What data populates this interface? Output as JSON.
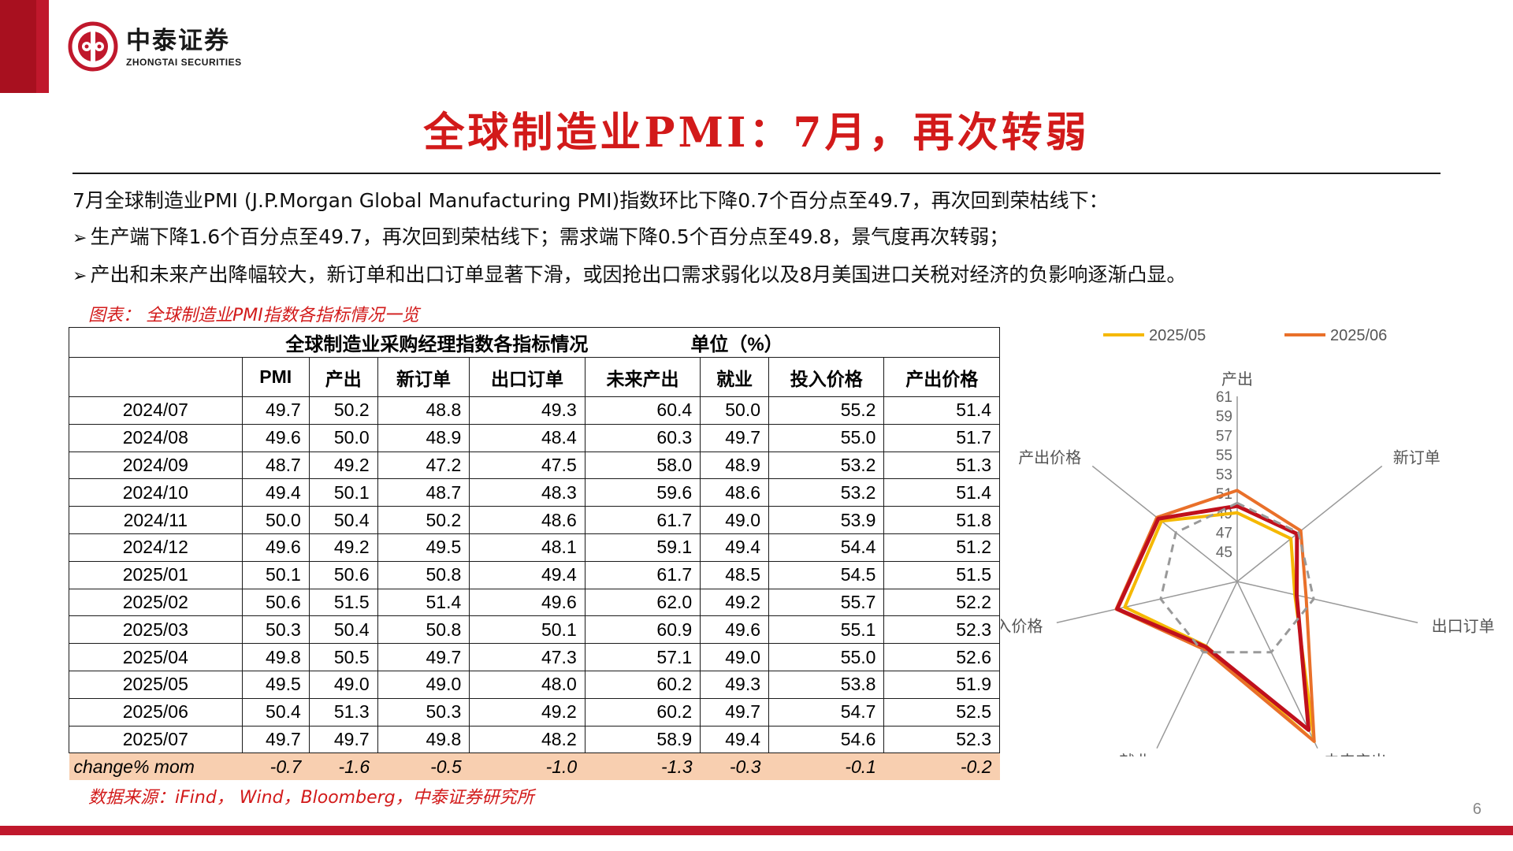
{
  "logo": {
    "cn": "中泰证券",
    "en": "ZHONGTAI SECURITIES"
  },
  "title": "全球制造业PMI：7月，再次转弱",
  "bullets": {
    "intro": "7月全球制造业PMI (J.P.Morgan Global Manufacturing PMI)指数环比下降0.7个百分点至49.7，再次回到荣枯线下：",
    "b1": "生产端下降1.6个百分点至49.7，再次回到荣枯线下；需求端下降0.5个百分点至49.8，景气度再次转弱；",
    "b2": "产出和未来产出降幅较大，新订单和出口订单显著下滑，或因抢出口需求弱化以及8月美国进口关税对经济的负影响逐渐凸显。"
  },
  "figure_caption": "图表：  全球制造业PMI指数各指标情况一览",
  "table": {
    "title": "全球制造业采购经理指数各指标情况",
    "unit": "单位（%）",
    "columns": [
      "PMI",
      "产出",
      "新订单",
      "出口订单",
      "未来产出",
      "就业",
      "投入价格",
      "产出价格"
    ],
    "rows": [
      {
        "date": "2024/07",
        "v": [
          "49.7",
          "50.2",
          "48.8",
          "49.3",
          "60.4",
          "50.0",
          "55.2",
          "51.4"
        ]
      },
      {
        "date": "2024/08",
        "v": [
          "49.6",
          "50.0",
          "48.9",
          "48.4",
          "60.3",
          "49.7",
          "55.0",
          "51.7"
        ]
      },
      {
        "date": "2024/09",
        "v": [
          "48.7",
          "49.2",
          "47.2",
          "47.5",
          "58.0",
          "48.9",
          "53.2",
          "51.3"
        ]
      },
      {
        "date": "2024/10",
        "v": [
          "49.4",
          "50.1",
          "48.7",
          "48.3",
          "59.6",
          "48.6",
          "53.2",
          "51.4"
        ]
      },
      {
        "date": "2024/11",
        "v": [
          "50.0",
          "50.4",
          "50.2",
          "48.6",
          "61.7",
          "49.0",
          "53.9",
          "51.8"
        ]
      },
      {
        "date": "2024/12",
        "v": [
          "49.6",
          "49.2",
          "49.5",
          "48.1",
          "59.1",
          "49.4",
          "54.4",
          "51.2"
        ]
      },
      {
        "date": "2025/01",
        "v": [
          "50.1",
          "50.6",
          "50.8",
          "49.4",
          "61.7",
          "48.5",
          "54.5",
          "51.5"
        ]
      },
      {
        "date": "2025/02",
        "v": [
          "50.6",
          "51.5",
          "51.4",
          "49.6",
          "62.0",
          "49.2",
          "55.7",
          "52.2"
        ]
      },
      {
        "date": "2025/03",
        "v": [
          "50.3",
          "50.4",
          "50.8",
          "50.1",
          "60.9",
          "49.6",
          "55.1",
          "52.3"
        ]
      },
      {
        "date": "2025/04",
        "v": [
          "49.8",
          "50.5",
          "49.7",
          "47.3",
          "57.1",
          "49.0",
          "55.0",
          "52.6"
        ]
      },
      {
        "date": "2025/05",
        "v": [
          "49.5",
          "49.0",
          "49.0",
          "48.0",
          "60.2",
          "49.3",
          "53.8",
          "51.9"
        ]
      },
      {
        "date": "2025/06",
        "v": [
          "50.4",
          "51.3",
          "50.3",
          "49.2",
          "60.2",
          "49.7",
          "54.7",
          "52.5"
        ]
      },
      {
        "date": "2025/07",
        "v": [
          "49.7",
          "49.7",
          "49.8",
          "48.2",
          "58.9",
          "49.4",
          "54.6",
          "52.3"
        ]
      }
    ],
    "change": {
      "label": "change% mom",
      "v": [
        "-0.7",
        "-1.6",
        "-0.5",
        "-1.0",
        "-1.3",
        "-0.3",
        "-0.1",
        "-0.2"
      ]
    }
  },
  "source": "数据来源：iFind， Wind，Bloomberg，中泰证券研究所",
  "page_number": "6",
  "colors": {
    "brand_red": "#c0182c",
    "title_red": "#d21a1a",
    "change_row": "#f8cfb0"
  },
  "chart_data": {
    "type": "radar",
    "axes": [
      "产出",
      "新订单",
      "出口订单",
      "未来产出",
      "就业",
      "投入价格",
      "产出价格"
    ],
    "ticks": [
      "45",
      "47",
      "49",
      "51",
      "53",
      "55",
      "57",
      "59",
      "61"
    ],
    "rmin": 45,
    "rmax": 61,
    "legend_position": "top",
    "series": [
      {
        "name": "2025/05",
        "color": "#f5b800",
        "dash": false,
        "values": [
          49.0,
          49.0,
          48.0,
          60.2,
          49.3,
          53.8,
          51.9
        ],
        "in_legend": true
      },
      {
        "name": "2025/06",
        "color": "#e9702a",
        "dash": false,
        "values": [
          51.3,
          50.3,
          49.2,
          60.2,
          49.7,
          54.7,
          52.5
        ],
        "in_legend": true
      },
      {
        "name": "",
        "color": "#c0101c",
        "dash": false,
        "values": [
          49.7,
          49.8,
          48.2,
          58.9,
          49.4,
          54.6,
          52.3
        ],
        "in_legend": false
      },
      {
        "name": "",
        "color": "#999999",
        "dash": true,
        "values": [
          50,
          50,
          50,
          50,
          50,
          50,
          50
        ],
        "in_legend": false
      }
    ]
  }
}
